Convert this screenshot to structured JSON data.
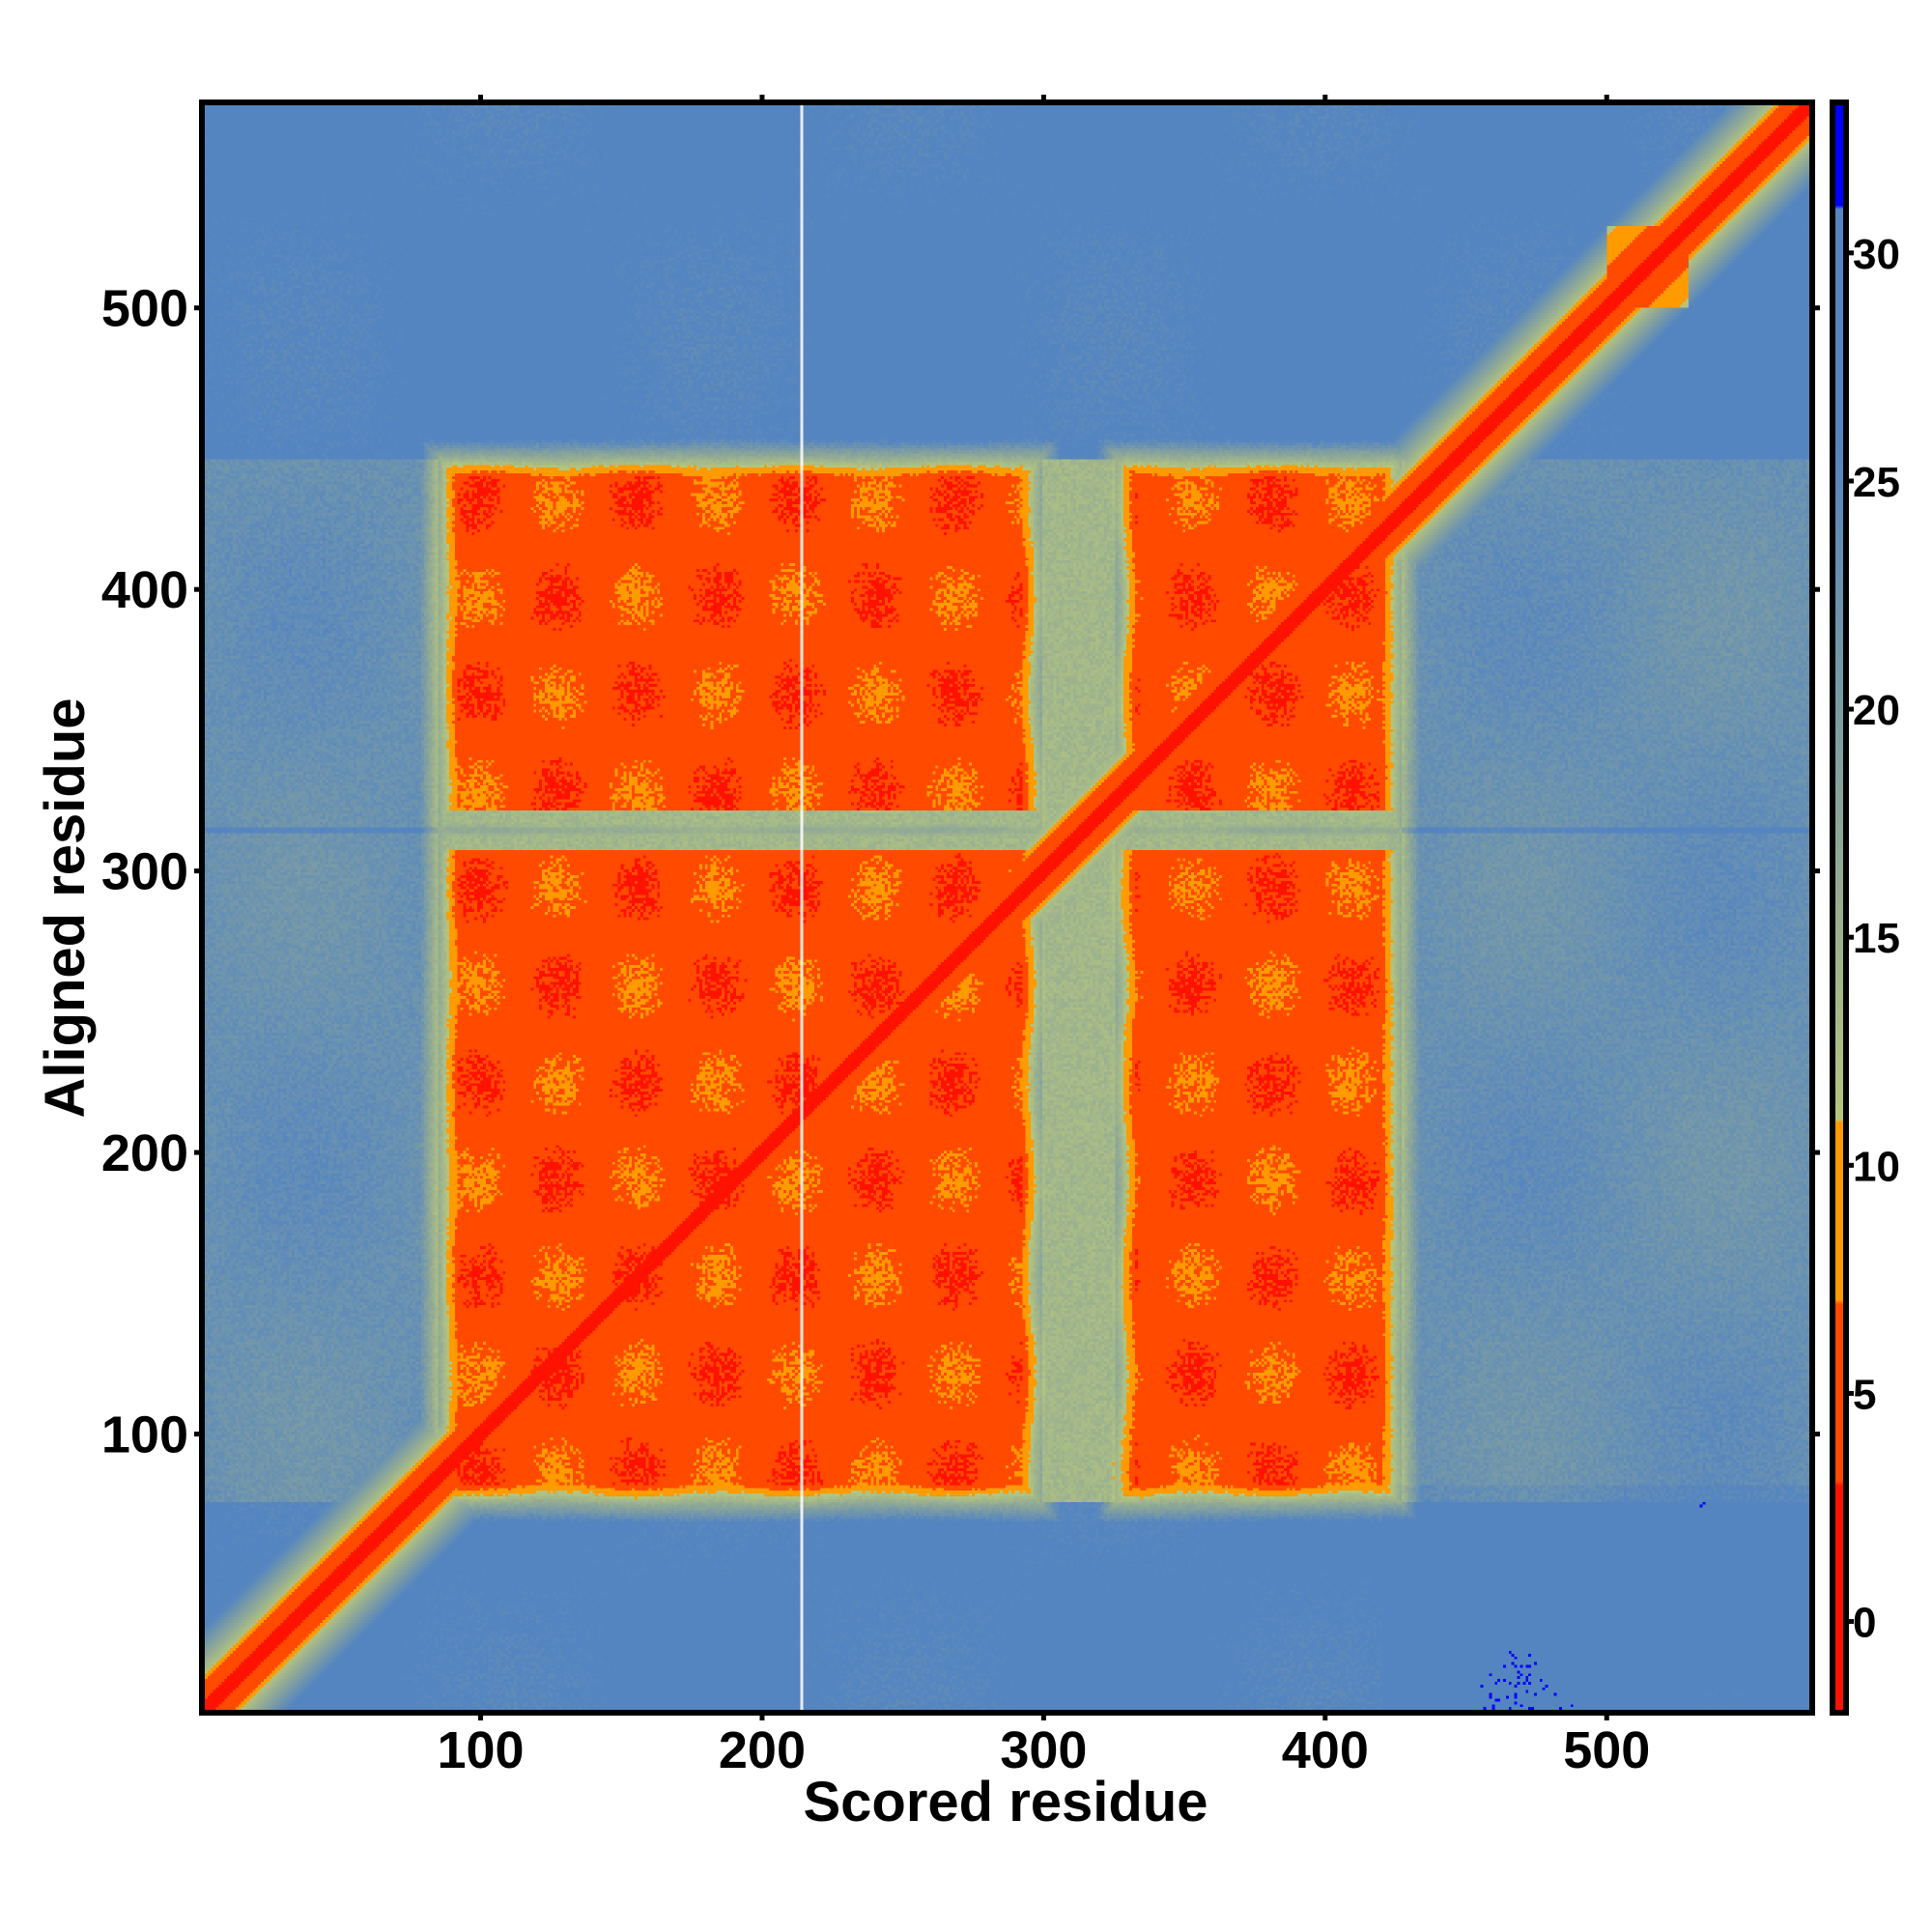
{
  "chart_data": {
    "type": "heatmap",
    "title": "",
    "xlabel": "Scored residue",
    "ylabel": "Aligned residue",
    "xlim": [
      1,
      573
    ],
    "ylim": [
      1,
      573
    ],
    "x_ticks": [
      100,
      200,
      300,
      400,
      500
    ],
    "y_ticks": [
      100,
      200,
      300,
      400,
      500
    ],
    "colorbar": {
      "ticks": [
        0,
        5,
        10,
        15,
        20,
        25,
        30
      ],
      "range": [
        -2,
        33.3
      ],
      "colors": {
        "very_low": "#ff1200",
        "low": "#ff4a00",
        "mid": "#ff9a00",
        "transition": "#b6c67e",
        "high": "#5585c0",
        "max": "#0000ff"
      }
    },
    "matrix_model": {
      "diagonal_value": 1,
      "background_value": 27,
      "block_value": 5,
      "block_x_ranges": [
        [
          92,
          292
        ],
        [
          333,
          420
        ]
      ],
      "block_y_ranges": [
        [
          82,
          307
        ],
        [
          322,
          440
        ]
      ],
      "gap_column_x": [
        292,
        333
      ],
      "gap_column_value": 18,
      "gap_row_y": [
        307,
        322
      ],
      "gap_row_value": 14,
      "blank_column_x": 214
    }
  }
}
